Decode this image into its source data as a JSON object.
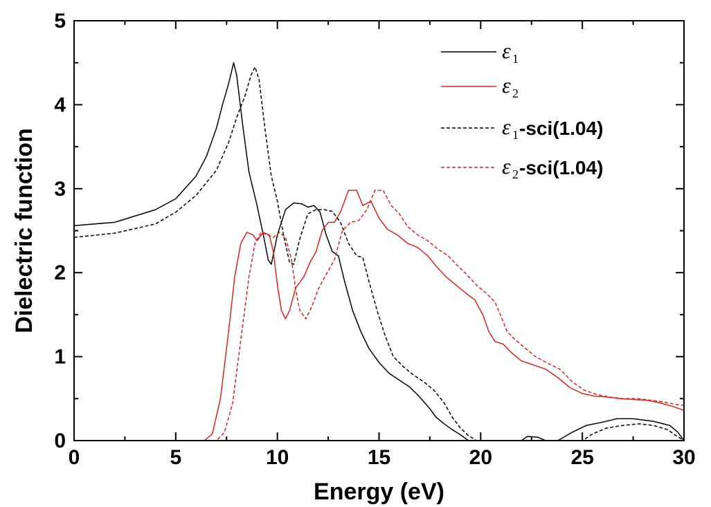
{
  "chart_data": {
    "type": "line",
    "title": "",
    "xlabel": "Energy (eV)",
    "ylabel": "Dielectric function",
    "xlim": [
      0,
      30
    ],
    "ylim": [
      0,
      5
    ],
    "xticks": [
      0,
      5,
      10,
      15,
      20,
      25,
      30
    ],
    "yticks": [
      0,
      1,
      2,
      3,
      4,
      5
    ],
    "grid": false,
    "legend_position": "top-right",
    "series": [
      {
        "name": "ε1",
        "symbol": "ε",
        "subscript": "1",
        "suffix": "",
        "color": "#000000",
        "dash": "solid",
        "points": [
          [
            0,
            2.56
          ],
          [
            2,
            2.6
          ],
          [
            4,
            2.75
          ],
          [
            5,
            2.88
          ],
          [
            6,
            3.15
          ],
          [
            6.5,
            3.38
          ],
          [
            7,
            3.72
          ],
          [
            7.3,
            4.0
          ],
          [
            7.6,
            4.25
          ],
          [
            7.85,
            4.5
          ],
          [
            8.0,
            4.35
          ],
          [
            8.3,
            3.75
          ],
          [
            8.6,
            3.2
          ],
          [
            9.0,
            2.8
          ],
          [
            9.35,
            2.4
          ],
          [
            9.55,
            2.15
          ],
          [
            9.7,
            2.1
          ],
          [
            10.0,
            2.45
          ],
          [
            10.4,
            2.75
          ],
          [
            10.8,
            2.83
          ],
          [
            11.2,
            2.82
          ],
          [
            11.5,
            2.78
          ],
          [
            11.8,
            2.8
          ],
          [
            12.1,
            2.72
          ],
          [
            12.4,
            2.45
          ],
          [
            12.7,
            2.25
          ],
          [
            13.0,
            2.2
          ],
          [
            13.3,
            1.9
          ],
          [
            13.7,
            1.55
          ],
          [
            14.1,
            1.3
          ],
          [
            14.5,
            1.1
          ],
          [
            15.0,
            0.93
          ],
          [
            15.5,
            0.8
          ],
          [
            16.0,
            0.72
          ],
          [
            16.5,
            0.64
          ],
          [
            17.0,
            0.52
          ],
          [
            17.5,
            0.38
          ],
          [
            17.8,
            0.28
          ],
          [
            18.2,
            0.2
          ],
          [
            18.6,
            0.13
          ],
          [
            19.0,
            0.07
          ],
          [
            19.4,
            0.0
          ],
          [
            22.0,
            0.0
          ],
          [
            22.3,
            0.05
          ],
          [
            22.8,
            0.04
          ],
          [
            23.2,
            0.0
          ],
          [
            23.8,
            0.0
          ],
          [
            24.5,
            0.1
          ],
          [
            25.2,
            0.18
          ],
          [
            26.0,
            0.22
          ],
          [
            26.7,
            0.26
          ],
          [
            27.5,
            0.26
          ],
          [
            28.5,
            0.23
          ],
          [
            29.3,
            0.18
          ],
          [
            29.7,
            0.1
          ],
          [
            30.0,
            0.0
          ]
        ]
      },
      {
        "name": "ε2",
        "symbol": "ε",
        "subscript": "2",
        "suffix": "",
        "color": "#e0211b",
        "dash": "solid",
        "points": [
          [
            0,
            0.0
          ],
          [
            6.4,
            0.0
          ],
          [
            6.8,
            0.08
          ],
          [
            7.2,
            0.5
          ],
          [
            7.6,
            1.3
          ],
          [
            7.9,
            1.95
          ],
          [
            8.2,
            2.35
          ],
          [
            8.5,
            2.48
          ],
          [
            8.8,
            2.45
          ],
          [
            9.0,
            2.38
          ],
          [
            9.3,
            2.48
          ],
          [
            9.6,
            2.45
          ],
          [
            9.8,
            2.25
          ],
          [
            10.0,
            1.85
          ],
          [
            10.2,
            1.55
          ],
          [
            10.4,
            1.45
          ],
          [
            10.6,
            1.55
          ],
          [
            10.9,
            1.82
          ],
          [
            11.3,
            1.95
          ],
          [
            11.6,
            2.12
          ],
          [
            11.9,
            2.25
          ],
          [
            12.2,
            2.5
          ],
          [
            12.5,
            2.6
          ],
          [
            12.8,
            2.6
          ],
          [
            13.1,
            2.72
          ],
          [
            13.5,
            2.98
          ],
          [
            13.9,
            2.98
          ],
          [
            14.2,
            2.8
          ],
          [
            14.6,
            2.85
          ],
          [
            15.0,
            2.65
          ],
          [
            15.4,
            2.52
          ],
          [
            15.9,
            2.45
          ],
          [
            16.4,
            2.35
          ],
          [
            16.9,
            2.3
          ],
          [
            17.4,
            2.2
          ],
          [
            17.8,
            2.08
          ],
          [
            18.3,
            1.95
          ],
          [
            18.8,
            1.85
          ],
          [
            19.3,
            1.75
          ],
          [
            19.7,
            1.68
          ],
          [
            20.1,
            1.5
          ],
          [
            20.4,
            1.3
          ],
          [
            20.7,
            1.18
          ],
          [
            21.1,
            1.15
          ],
          [
            21.5,
            1.05
          ],
          [
            22.0,
            0.95
          ],
          [
            22.6,
            0.9
          ],
          [
            23.2,
            0.85
          ],
          [
            23.8,
            0.75
          ],
          [
            24.4,
            0.63
          ],
          [
            25.0,
            0.56
          ],
          [
            25.6,
            0.53
          ],
          [
            26.2,
            0.52
          ],
          [
            26.8,
            0.5
          ],
          [
            27.5,
            0.49
          ],
          [
            28.2,
            0.48
          ],
          [
            28.8,
            0.45
          ],
          [
            29.4,
            0.41
          ],
          [
            30.0,
            0.36
          ]
        ]
      },
      {
        "name": "ε1-sci(1.04)",
        "symbol": "ε",
        "subscript": "1",
        "suffix": "-sci(1.04)",
        "color": "#000000",
        "dash": "dashed",
        "points": [
          [
            0,
            2.42
          ],
          [
            2,
            2.47
          ],
          [
            4,
            2.58
          ],
          [
            5,
            2.72
          ],
          [
            6,
            2.92
          ],
          [
            7,
            3.22
          ],
          [
            7.6,
            3.55
          ],
          [
            8.0,
            3.85
          ],
          [
            8.4,
            4.1
          ],
          [
            8.7,
            4.35
          ],
          [
            8.9,
            4.45
          ],
          [
            9.1,
            4.3
          ],
          [
            9.4,
            3.7
          ],
          [
            9.7,
            3.15
          ],
          [
            10.0,
            2.85
          ],
          [
            10.3,
            2.45
          ],
          [
            10.6,
            2.12
          ],
          [
            10.8,
            2.1
          ],
          [
            11.1,
            2.4
          ],
          [
            11.5,
            2.7
          ],
          [
            11.9,
            2.75
          ],
          [
            12.3,
            2.75
          ],
          [
            12.7,
            2.73
          ],
          [
            13.1,
            2.6
          ],
          [
            13.5,
            2.35
          ],
          [
            13.9,
            2.2
          ],
          [
            14.2,
            2.18
          ],
          [
            14.5,
            1.9
          ],
          [
            14.9,
            1.55
          ],
          [
            15.3,
            1.25
          ],
          [
            15.7,
            1.0
          ],
          [
            16.2,
            0.88
          ],
          [
            16.7,
            0.78
          ],
          [
            17.2,
            0.7
          ],
          [
            17.7,
            0.6
          ],
          [
            18.2,
            0.45
          ],
          [
            18.6,
            0.28
          ],
          [
            19.0,
            0.15
          ],
          [
            19.4,
            0.06
          ],
          [
            19.8,
            0.0
          ],
          [
            25.0,
            0.0
          ],
          [
            25.5,
            0.08
          ],
          [
            26.2,
            0.15
          ],
          [
            27.0,
            0.18
          ],
          [
            27.8,
            0.2
          ],
          [
            28.5,
            0.18
          ],
          [
            29.2,
            0.13
          ],
          [
            29.6,
            0.06
          ],
          [
            30.0,
            0.0
          ]
        ]
      },
      {
        "name": "ε2-sci(1.04)",
        "symbol": "ε",
        "subscript": "2",
        "suffix": "-sci(1.04)",
        "color": "#e0211b",
        "dash": "dashed",
        "points": [
          [
            0,
            0.0
          ],
          [
            7.0,
            0.0
          ],
          [
            7.4,
            0.1
          ],
          [
            7.8,
            0.45
          ],
          [
            8.2,
            1.2
          ],
          [
            8.6,
            1.95
          ],
          [
            8.9,
            2.35
          ],
          [
            9.2,
            2.48
          ],
          [
            9.5,
            2.45
          ],
          [
            9.8,
            2.42
          ],
          [
            10.1,
            2.48
          ],
          [
            10.4,
            2.42
          ],
          [
            10.7,
            2.15
          ],
          [
            10.9,
            1.8
          ],
          [
            11.1,
            1.55
          ],
          [
            11.4,
            1.45
          ],
          [
            11.7,
            1.6
          ],
          [
            12.0,
            1.8
          ],
          [
            12.4,
            1.98
          ],
          [
            12.8,
            2.15
          ],
          [
            13.2,
            2.5
          ],
          [
            13.6,
            2.6
          ],
          [
            14.0,
            2.62
          ],
          [
            14.4,
            2.75
          ],
          [
            14.8,
            2.98
          ],
          [
            15.2,
            2.98
          ],
          [
            15.6,
            2.8
          ],
          [
            16.0,
            2.7
          ],
          [
            16.4,
            2.55
          ],
          [
            16.9,
            2.45
          ],
          [
            17.4,
            2.38
          ],
          [
            17.9,
            2.28
          ],
          [
            18.4,
            2.2
          ],
          [
            18.8,
            2.1
          ],
          [
            19.3,
            1.98
          ],
          [
            19.8,
            1.85
          ],
          [
            20.3,
            1.75
          ],
          [
            20.7,
            1.65
          ],
          [
            21.0,
            1.48
          ],
          [
            21.3,
            1.3
          ],
          [
            21.7,
            1.2
          ],
          [
            22.2,
            1.1
          ],
          [
            22.7,
            1.0
          ],
          [
            23.3,
            0.92
          ],
          [
            23.9,
            0.85
          ],
          [
            24.5,
            0.7
          ],
          [
            25.1,
            0.6
          ],
          [
            25.7,
            0.55
          ],
          [
            26.3,
            0.52
          ],
          [
            27.0,
            0.5
          ],
          [
            27.7,
            0.5
          ],
          [
            28.4,
            0.48
          ],
          [
            29.0,
            0.46
          ],
          [
            29.6,
            0.43
          ],
          [
            30.0,
            0.42
          ]
        ]
      }
    ]
  }
}
